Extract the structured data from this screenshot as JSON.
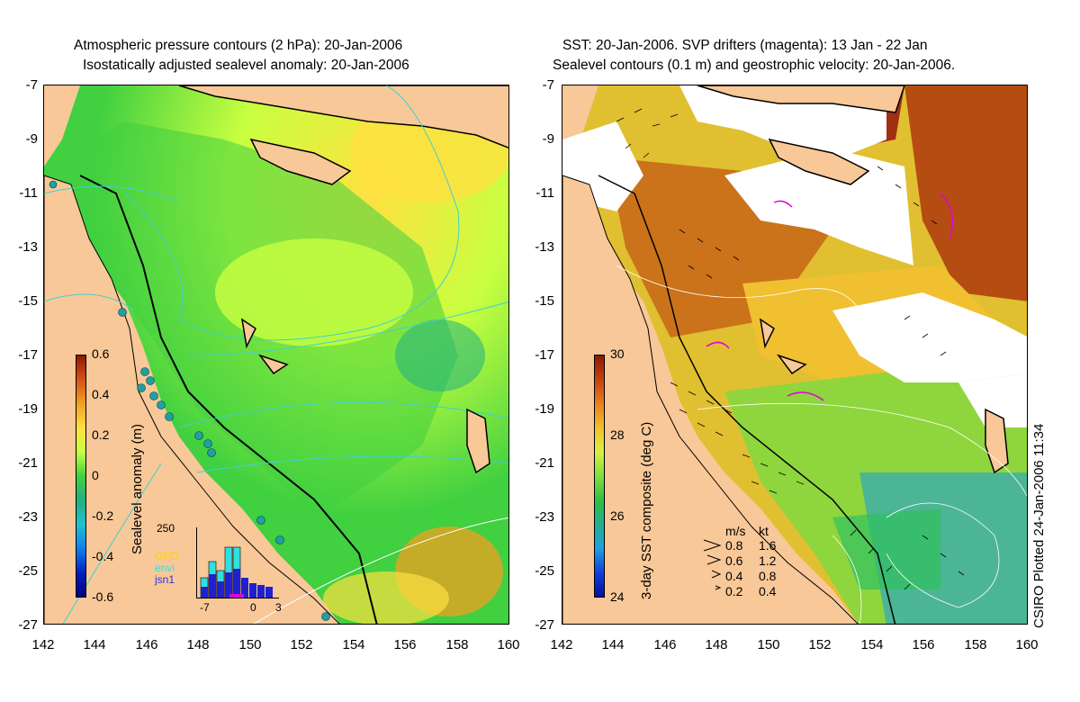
{
  "left_panel": {
    "title_line1": "Atmospheric pressure contours (2 hPa): 20-Jan-2006",
    "title_line2": "Isostatically adjusted sealevel anomaly: 20-Jan-2006",
    "colorbar": {
      "label": "Sealevel anomaly (m)",
      "ticks": [
        "0.6",
        "0.4",
        "0.2",
        "0",
        "-0.2",
        "-0.4",
        "-0.6"
      ],
      "colors": [
        "#8b1a00",
        "#d8501a",
        "#f0a020",
        "#ffe040",
        "#c8ff40",
        "#40d040",
        "#20b080",
        "#20c0d0",
        "#1080f0",
        "#0020c0",
        "#000080"
      ]
    },
    "inset": {
      "ymax_label": "250",
      "x_ticks": [
        "-7",
        "0",
        "3"
      ],
      "legend": [
        {
          "text": "GFO",
          "color": "#ffd000"
        },
        {
          "text": "envi",
          "color": "#30e0e0"
        },
        {
          "text": "jsn1",
          "color": "#3030e0"
        }
      ]
    }
  },
  "right_panel": {
    "title_line1": "SST: 20-Jan-2006. SVP drifters (magenta): 13 Jan - 22 Jan",
    "title_line2": "Sealevel contours (0.1 m) and geostrophic velocity: 20-Jan-2006.",
    "colorbar": {
      "label": "3-day SST composite (deg C)",
      "ticks": [
        "30",
        "28",
        "26",
        "24"
      ],
      "colors": [
        "#8b1a00",
        "#c84010",
        "#e88020",
        "#f0c030",
        "#d8f040",
        "#80e040",
        "#30c040",
        "#20b090",
        "#20a0e0",
        "#1040e0",
        "#0010a0"
      ]
    },
    "speed_legend": {
      "header_ms": "m/s",
      "header_kt": "kt",
      "rows": [
        {
          "ms": "0.8",
          "kt": "1.6"
        },
        {
          "ms": "0.6",
          "kt": "1.2"
        },
        {
          "ms": "0.4",
          "kt": "0.8"
        },
        {
          "ms": "0.2",
          "kt": "0.4"
        }
      ]
    },
    "credit": "CSIRO Plotted 24-Jan-2006 11:34"
  },
  "axes": {
    "y_ticks": [
      "-7",
      "-9",
      "-11",
      "-13",
      "-15",
      "-17",
      "-19",
      "-21",
      "-23",
      "-25",
      "-27"
    ],
    "x_ticks": [
      "142",
      "144",
      "146",
      "148",
      "150",
      "152",
      "154",
      "156",
      "158",
      "160"
    ]
  },
  "colors": {
    "land": "#f8c898",
    "ocean_green": "#40c040",
    "ocean_yellow": "#d8f040",
    "sst_orange": "#d07020",
    "cloud": "#ffffff",
    "drifter": "#e000e0",
    "pressure_contour": "#40d0d0"
  }
}
